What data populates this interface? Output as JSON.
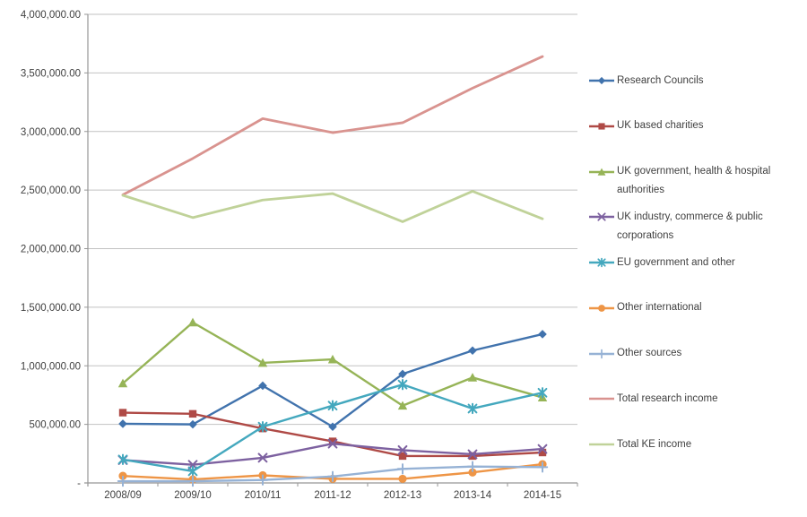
{
  "chart_data": {
    "type": "line",
    "title": "",
    "categories": [
      "2008/09",
      "2009/10",
      "2010/11",
      "2011-12",
      "2012-13",
      "2013-14",
      "2014-15"
    ],
    "series": [
      {
        "name": "Research Councils",
        "color": "#4173AD",
        "marker": "diamond",
        "values": [
          505000,
          500000,
          830000,
          480000,
          930000,
          1130000,
          1270000
        ]
      },
      {
        "name": "UK based charities",
        "color": "#AF4A46",
        "marker": "square",
        "values": [
          600000,
          590000,
          465000,
          355000,
          230000,
          230000,
          260000
        ]
      },
      {
        "name": "UK government, health & hospital authorities",
        "color": "#96B457",
        "marker": "triangle",
        "values": [
          850000,
          1370000,
          1025000,
          1055000,
          660000,
          900000,
          730000
        ]
      },
      {
        "name": "UK industry, commerce & public corporations",
        "color": "#7D61A0",
        "marker": "x",
        "values": [
          195000,
          155000,
          215000,
          335000,
          280000,
          245000,
          290000
        ]
      },
      {
        "name": "EU government and other",
        "color": "#44A8BE",
        "marker": "asterisk",
        "values": [
          200000,
          100000,
          480000,
          660000,
          840000,
          635000,
          770000
        ]
      },
      {
        "name": "Other international",
        "color": "#EE9546",
        "marker": "circle",
        "values": [
          60000,
          30000,
          65000,
          35000,
          35000,
          90000,
          160000
        ]
      },
      {
        "name": "Other sources",
        "color": "#96B2D5",
        "marker": "plus",
        "values": [
          15000,
          15000,
          25000,
          55000,
          120000,
          140000,
          135000
        ]
      },
      {
        "name": "Total research income",
        "color": "#D9938F",
        "marker": "none",
        "values": [
          2460000,
          2770000,
          3110000,
          2990000,
          3075000,
          3370000,
          3640000
        ]
      },
      {
        "name": "Total KE income",
        "color": "#C0D299",
        "marker": "none",
        "values": [
          2455000,
          2265000,
          2415000,
          2470000,
          2230000,
          2490000,
          2255000
        ]
      }
    ],
    "y_axis": {
      "min": 0,
      "max": 4000000,
      "step": 500000,
      "tick_labels_top_down": [
        "4,000,000.00",
        "3,500,000.00",
        "3,000,000.00",
        "2,500,000.00",
        "2,000,000.00",
        "1,500,000.00",
        "1,000,000.00",
        "500,000.00",
        "-"
      ]
    },
    "grid": true,
    "legend_position": "right",
    "colors": {
      "gridline": "#C2C2C2",
      "axis": "#969696",
      "text": "#404040"
    }
  }
}
